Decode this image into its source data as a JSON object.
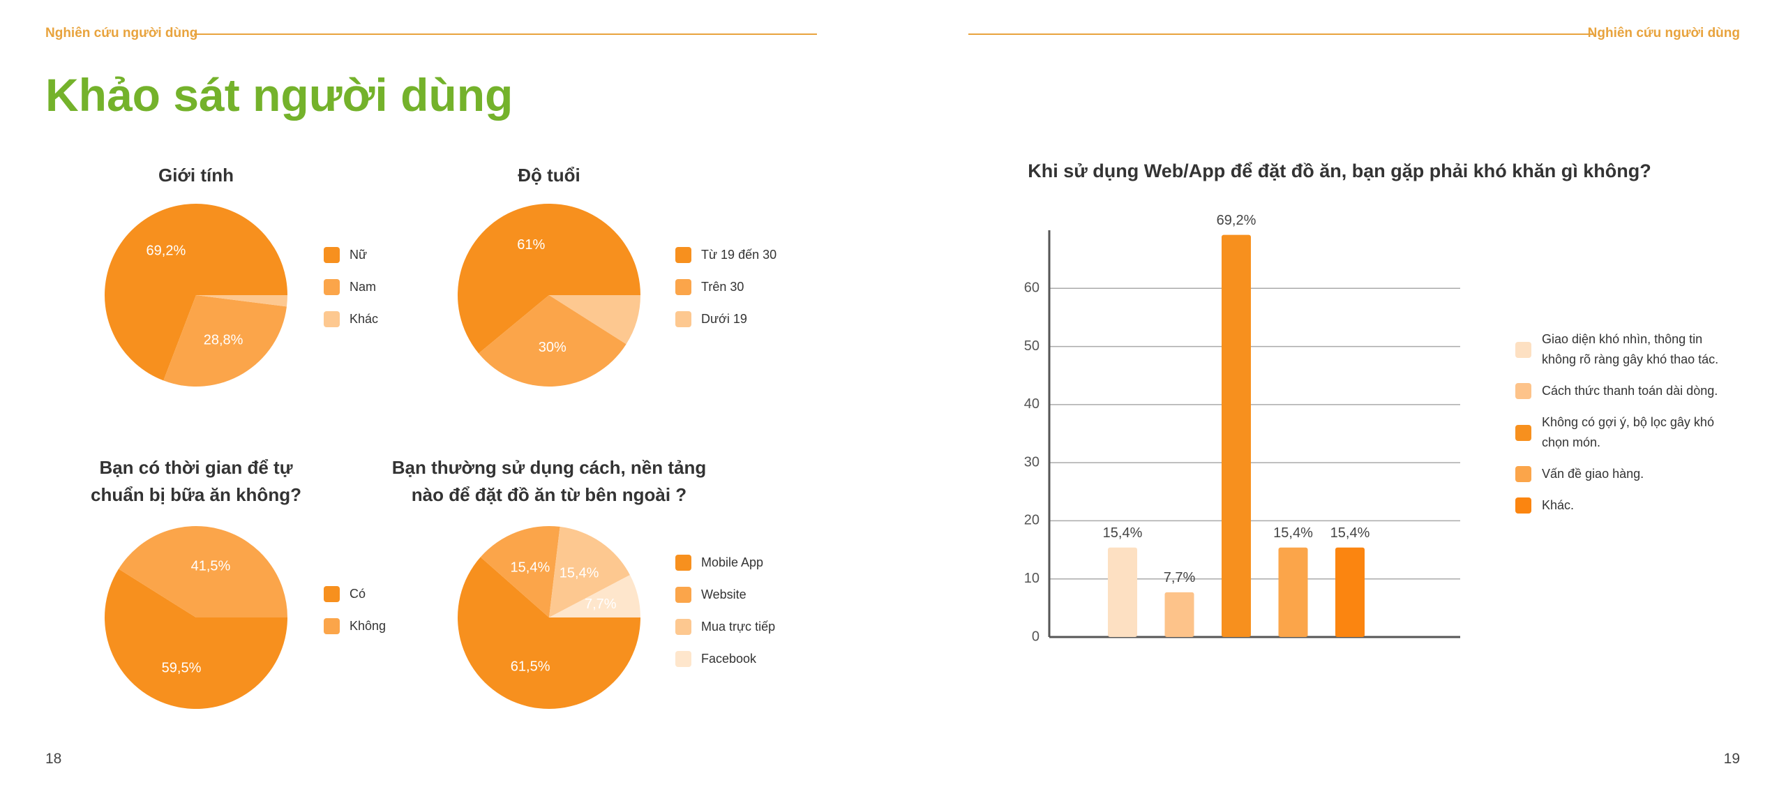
{
  "header": {
    "left": "Nghiên cứu người dùng",
    "right": "Nghiên cứu người dùng"
  },
  "title": "Khảo sát người dùng",
  "page_numbers": [
    "18",
    "19"
  ],
  "chart_data": [
    {
      "type": "pie",
      "title": "Giới tính",
      "categories": [
        "Nữ",
        "Nam",
        "Khác"
      ],
      "values": [
        69.2,
        28.8,
        2
      ],
      "value_labels": [
        "69,2%",
        "28,8%",
        null
      ],
      "colors": [
        "#f7901e",
        "#fba54a",
        "#fdc890"
      ],
      "counterclockwise": true
    },
    {
      "type": "pie",
      "title": "Độ tuổi",
      "categories": [
        "Từ 19 đến 30",
        "Trên 30",
        "Dưới 19"
      ],
      "values": [
        61,
        30,
        9
      ],
      "value_labels": [
        "61%",
        "30%",
        null
      ],
      "colors": [
        "#f7901e",
        "#fba54a",
        "#fdc890"
      ],
      "counterclockwise": true
    },
    {
      "type": "pie",
      "title": "Bạn có thời gian để tự chuẩn bị bữa ăn không?",
      "categories": [
        "Có",
        "Không"
      ],
      "values": [
        59.5,
        41.5
      ],
      "value_labels": [
        "59,5%",
        "41,5%"
      ],
      "colors": [
        "#f7901e",
        "#fba54a"
      ],
      "counterclockwise": false
    },
    {
      "type": "pie",
      "title": "Bạn thường sử dụng cách, nền tảng nào để đặt đồ ăn từ bên ngoài ?",
      "categories": [
        "Mobile App",
        "Website",
        "Mua trực tiếp",
        "Facebook"
      ],
      "values": [
        61.5,
        15.4,
        15.4,
        7.7
      ],
      "value_labels": [
        "61,5%",
        "15,4%",
        "15,4%",
        "7,7%"
      ],
      "colors": [
        "#f7901e",
        "#fba54a",
        "#fdc890",
        "#fee6cc"
      ],
      "counterclockwise": false
    },
    {
      "type": "bar",
      "title": "Khi sử dụng Web/App để đặt đồ ăn, bạn gặp phải khó khăn gì không?",
      "categories": [
        "Giao diện khó nhìn, thông tin không rõ ràng gây khó thao tác.",
        "Cách thức thanh toán dài dòng.",
        "Không có gợi ý, bộ lọc gây khó chọn món.",
        "Vấn đề giao hàng.",
        "Khác."
      ],
      "values": [
        15.4,
        7.7,
        69.2,
        15.4,
        15.4
      ],
      "value_labels": [
        "15,4%",
        "7,7%",
        "69,2%",
        "15,4%",
        "15,4%"
      ],
      "colors": [
        "#fde0c2",
        "#fdc38a",
        "#f7901e",
        "#fba54a",
        "#fb8510"
      ],
      "ylim": [
        0,
        70
      ],
      "yticks": [
        0,
        10,
        20,
        30,
        40,
        50,
        60
      ],
      "grid": true,
      "legend": "right"
    }
  ]
}
